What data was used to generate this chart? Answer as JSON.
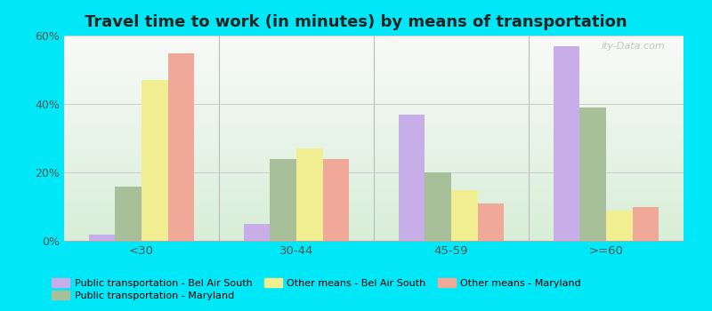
{
  "title": "Travel time to work (in minutes) by means of transportation",
  "categories": [
    "<30",
    "30-44",
    "45-59",
    ">=60"
  ],
  "series": [
    {
      "label": "Public transportation - Bel Air South",
      "color": "#c8aee8",
      "values": [
        2,
        5,
        37,
        57
      ]
    },
    {
      "label": "Public transportation - Maryland",
      "color": "#a8c09a",
      "values": [
        16,
        24,
        20,
        39
      ]
    },
    {
      "label": "Other means - Bel Air South",
      "color": "#f0ee90",
      "values": [
        47,
        27,
        15,
        9
      ]
    },
    {
      "label": "Other means - Maryland",
      "color": "#f0a898",
      "values": [
        55,
        24,
        11,
        10
      ]
    }
  ],
  "ylim": [
    0,
    60
  ],
  "yticks": [
    0,
    20,
    40,
    60
  ],
  "ytick_labels": [
    "0%",
    "20%",
    "40%",
    "60%"
  ],
  "background_outer": "#00e8f8",
  "background_inner_top": "#f8faf8",
  "background_inner_bottom": "#d8eed8",
  "title_fontsize": 13,
  "bar_width": 0.17
}
